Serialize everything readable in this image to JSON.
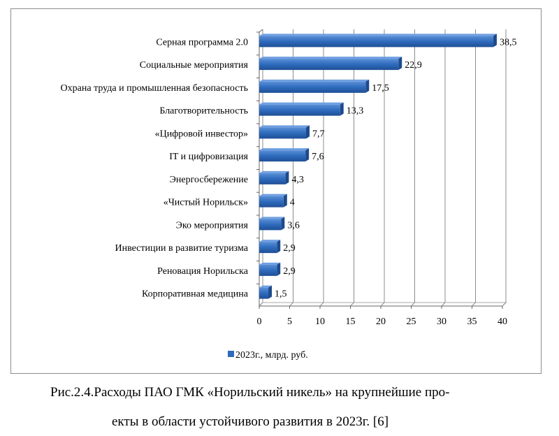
{
  "chart_data": {
    "type": "bar",
    "orientation": "horizontal",
    "categories": [
      "Серная программа 2.0",
      "Социальные мероприятия",
      "Охрана труда и промышленная безопасность",
      "Благотворительность",
      "«Цифровой инвестор»",
      "IT и цифровизация",
      "Энергосбережение",
      "«Чистый Норильск»",
      "Эко мероприятия",
      "Инвестиции в развитие туризма",
      "Реновация Норильска",
      "Корпоративная медицина"
    ],
    "series": [
      {
        "name": "2023г., млрд. руб.",
        "values": [
          38.5,
          22.9,
          17.5,
          13.3,
          7.7,
          7.6,
          4.3,
          4,
          3.6,
          2.9,
          2.9,
          1.5
        ],
        "labels": [
          "38,5",
          "22,9",
          "17,5",
          "13,3",
          "7,7",
          "7,6",
          "4,3",
          "4",
          "3,6",
          "2,9",
          "2,9",
          "1,5"
        ]
      }
    ],
    "xticks": [
      "0",
      "5",
      "10",
      "15",
      "20",
      "25",
      "30",
      "35",
      "40"
    ],
    "xlim": [
      0,
      40
    ],
    "grid": true,
    "legend": "bottom-left",
    "color": "#2e6bbd"
  },
  "caption": {
    "line1": "Рис.2.4.Расходы ПАО ГМК «Норильский никель» на крупнейшие про-",
    "line2": "екты в области устойчивого развития в 2023г. [6]"
  }
}
